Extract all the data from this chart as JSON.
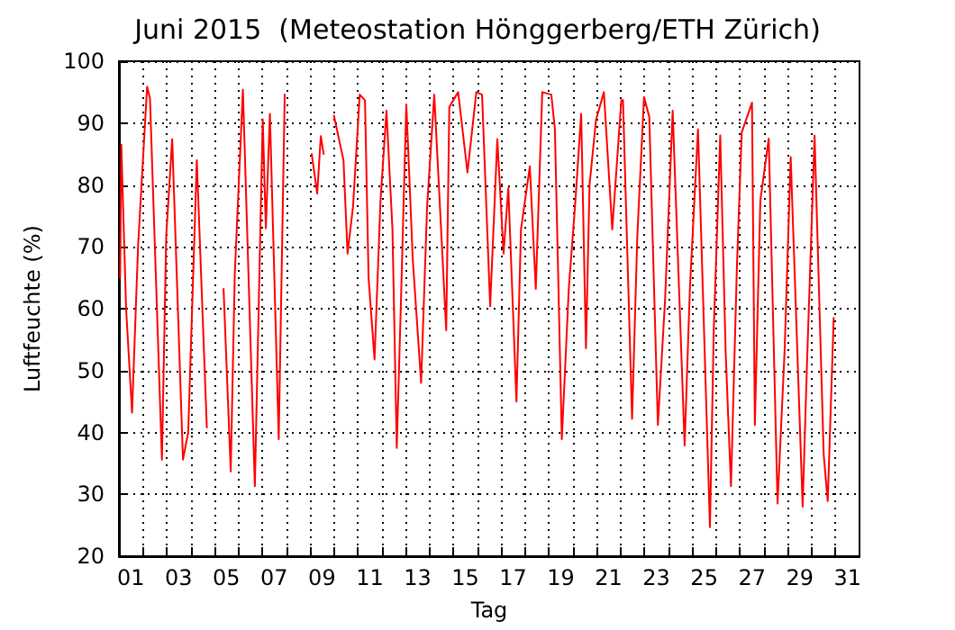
{
  "chart_data": {
    "type": "line",
    "title": "Juni 2015  (Meteostation Hönggerberg/ETH Zürich)",
    "xlabel": "Tag",
    "ylabel": "Luftfeuchte (%)",
    "x": [
      1.05,
      1.1,
      1.3,
      1.55,
      1.8,
      2.18,
      2.3,
      2.8,
      2.98,
      3.23,
      3.68,
      3.9,
      4.26,
      4.68,
      5.0,
      5.38,
      5.68,
      5.85,
      6.19,
      6.69,
      7.02,
      7.15,
      7.32,
      7.69,
      7.94,
      8.5,
      9.07,
      9.3,
      9.45,
      9.57,
      9.8,
      10.0,
      10.4,
      10.57,
      10.8,
      11.08,
      11.3,
      11.45,
      11.7,
      11.95,
      12.2,
      12.45,
      12.63,
      12.8,
      13.03,
      13.3,
      13.65,
      13.9,
      14.2,
      14.7,
      14.83,
      15.2,
      15.59,
      15.96,
      16.2,
      16.54,
      16.84,
      17.1,
      17.3,
      17.64,
      17.83,
      18.2,
      18.45,
      18.72,
      19.1,
      19.25,
      19.54,
      19.83,
      20.1,
      20.35,
      20.55,
      20.7,
      20.97,
      21.3,
      21.65,
      22.03,
      22.1,
      22.48,
      22.7,
      22.98,
      23.2,
      23.56,
      23.86,
      24.18,
      24.68,
      24.9,
      25.24,
      25.74,
      25.9,
      26.17,
      26.4,
      26.62,
      26.87,
      27.07,
      27.5,
      27.62,
      27.85,
      28.2,
      28.57,
      28.87,
      29.12,
      29.62,
      29.8,
      30.12,
      30.5,
      30.67,
      30.92
    ],
    "series": [
      {
        "color": "#ff0000",
        "values": [
          65,
          86.5,
          60,
          43.2,
          70,
          95.9,
          94,
          35.6,
          71.8,
          87.4,
          35.6,
          40,
          84,
          40.8,
          null,
          63.2,
          33.7,
          65.6,
          95.4,
          31.3,
          90.6,
          73,
          91.5,
          38.9,
          94.6,
          null,
          85,
          78.6,
          87.9,
          85,
          null,
          91.2,
          84,
          68.9,
          76.5,
          94.6,
          93.7,
          65,
          51.8,
          77.5,
          92,
          72.8,
          37.5,
          60.4,
          93,
          68,
          48,
          76.5,
          94.6,
          56.5,
          92.6,
          95,
          82,
          95,
          94.6,
          60.4,
          87.4,
          68.9,
          79.5,
          45,
          72.8,
          83,
          63.2,
          95,
          94.6,
          89,
          38.9,
          63.2,
          77,
          91.5,
          53.6,
          80,
          90.5,
          95,
          72.8,
          93.7,
          93.7,
          42.2,
          71.8,
          94.2,
          91,
          41.2,
          61.3,
          92,
          37.9,
          63.2,
          89,
          24.7,
          56.5,
          88,
          52.7,
          31.3,
          67,
          88.5,
          93.3,
          41.2,
          77.5,
          87.5,
          28.5,
          53.6,
          84.5,
          28,
          50.8,
          88,
          36.5,
          28.9,
          58.5
        ]
      }
    ],
    "xlim": [
      1,
      32
    ],
    "xticks": [
      {
        "value": 1.5,
        "label": "01"
      },
      {
        "value": 3.5,
        "label": "03"
      },
      {
        "value": 5.5,
        "label": "05"
      },
      {
        "value": 7.5,
        "label": "07"
      },
      {
        "value": 9.5,
        "label": "09"
      },
      {
        "value": 11.5,
        "label": "11"
      },
      {
        "value": 13.5,
        "label": "13"
      },
      {
        "value": 15.5,
        "label": "15"
      },
      {
        "value": 17.5,
        "label": "17"
      },
      {
        "value": 19.5,
        "label": "19"
      },
      {
        "value": 21.5,
        "label": "21"
      },
      {
        "value": 23.5,
        "label": "23"
      },
      {
        "value": 25.5,
        "label": "25"
      },
      {
        "value": 27.5,
        "label": "27"
      },
      {
        "value": 29.5,
        "label": "29"
      },
      {
        "value": 31.5,
        "label": "31"
      },
      {
        "value": 2,
        "label": null
      },
      {
        "value": 3,
        "label": null
      },
      {
        "value": 4,
        "label": null
      },
      {
        "value": 5,
        "label": null
      },
      {
        "value": 6,
        "label": null
      },
      {
        "value": 7,
        "label": null
      },
      {
        "value": 8,
        "label": null
      },
      {
        "value": 9,
        "label": null
      },
      {
        "value": 10,
        "label": null
      },
      {
        "value": 11,
        "label": null
      },
      {
        "value": 12,
        "label": null
      },
      {
        "value": 13,
        "label": null
      },
      {
        "value": 14,
        "label": null
      },
      {
        "value": 15,
        "label": null
      },
      {
        "value": 16,
        "label": null
      },
      {
        "value": 17,
        "label": null
      },
      {
        "value": 18,
        "label": null
      },
      {
        "value": 19,
        "label": null
      },
      {
        "value": 20,
        "label": null
      },
      {
        "value": 21,
        "label": null
      },
      {
        "value": 22,
        "label": null
      },
      {
        "value": 23,
        "label": null
      },
      {
        "value": 24,
        "label": null
      },
      {
        "value": 25,
        "label": null
      },
      {
        "value": 26,
        "label": null
      },
      {
        "value": 27,
        "label": null
      },
      {
        "value": 28,
        "label": null
      },
      {
        "value": 29,
        "label": null
      },
      {
        "value": 30,
        "label": null
      },
      {
        "value": 31,
        "label": null
      }
    ],
    "ylim": [
      20,
      100
    ],
    "yticks": [
      20,
      30,
      40,
      50,
      60,
      70,
      80,
      90,
      100
    ],
    "grid": true,
    "marker": "none",
    "line_style": "solid"
  }
}
